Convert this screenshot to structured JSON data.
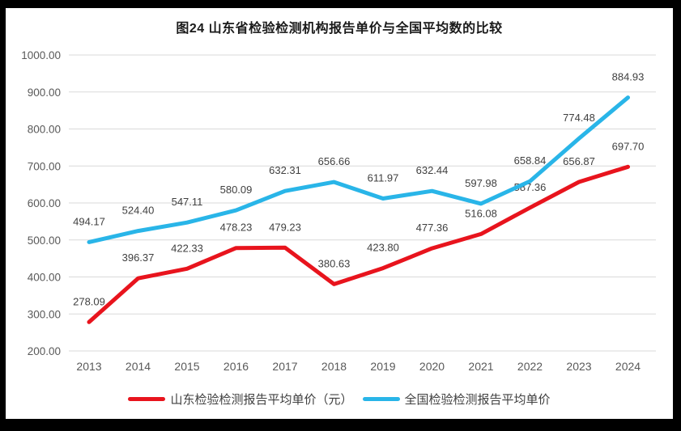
{
  "title": "图24  山东省检验检测机构报告单价与全国平均数的比较",
  "chart_data": {
    "type": "line",
    "x": [
      "2013",
      "2014",
      "2015",
      "2016",
      "2017",
      "2018",
      "2019",
      "2020",
      "2021",
      "2022",
      "2023",
      "2024"
    ],
    "series": [
      {
        "name": "山东检验检测报告平均单价（元）",
        "color": "#e8141d",
        "values": [
          278.09,
          396.37,
          422.33,
          478.23,
          479.23,
          380.63,
          423.8,
          477.36,
          516.08,
          587.36,
          656.87,
          697.7
        ]
      },
      {
        "name": "全国检验检测报告平均单价",
        "color": "#29b5e8",
        "values": [
          494.17,
          524.4,
          547.11,
          580.09,
          632.31,
          656.66,
          611.97,
          632.44,
          597.98,
          658.84,
          774.48,
          884.93
        ]
      }
    ],
    "ylim": [
      200,
      1000
    ],
    "yticks": [
      "200.00",
      "300.00",
      "400.00",
      "500.00",
      "600.00",
      "700.00",
      "800.00",
      "900.00",
      "1000.00"
    ],
    "grid": "horizontal",
    "grid_color": "#d9d9d9",
    "tick_label_color": "#595959",
    "data_label_color": "#404040",
    "data_labels": true,
    "legend_position": "bottom",
    "xlabel": "",
    "ylabel": ""
  }
}
